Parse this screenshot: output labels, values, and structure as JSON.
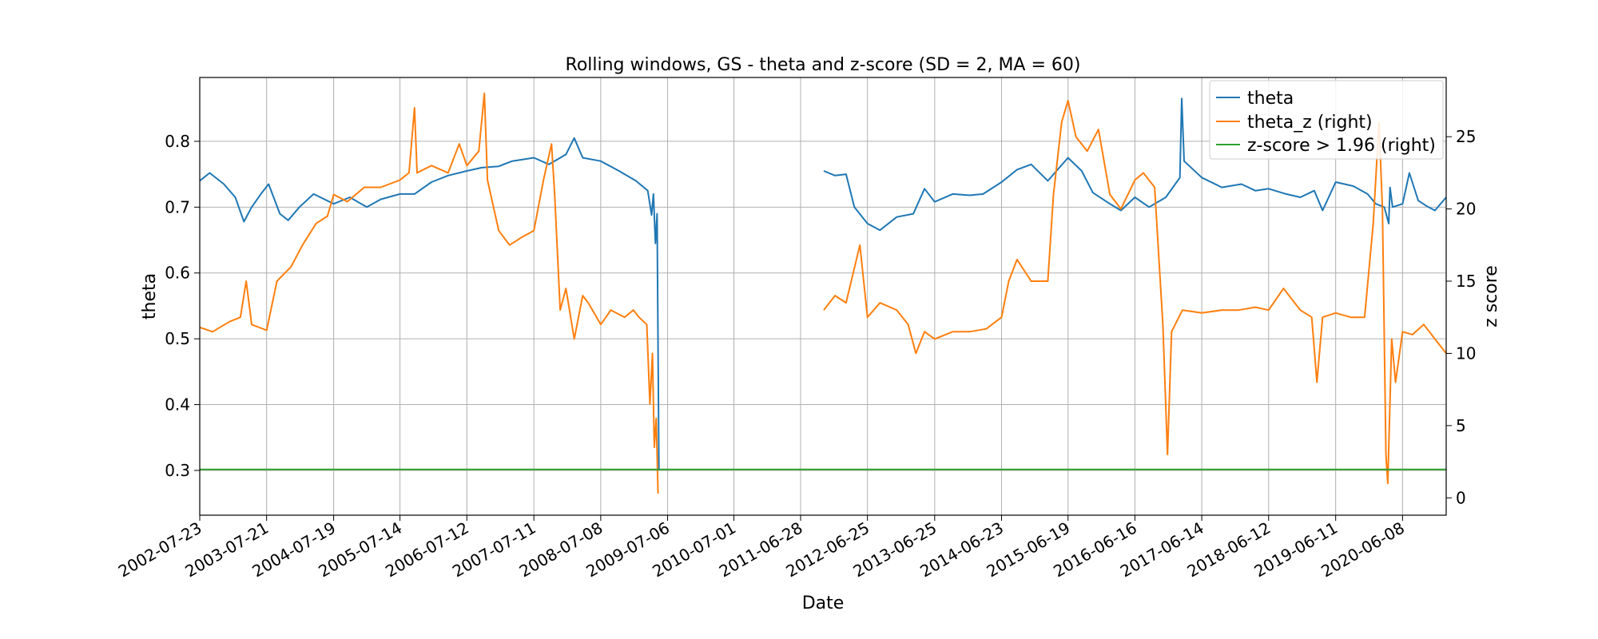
{
  "chart_data": {
    "type": "line",
    "title": "Rolling windows, GS - theta and z-score (SD = 2, MA = 60)",
    "xlabel": "Date",
    "ylabel_left": "theta",
    "ylabel_right": "z score",
    "x_range": [
      "2002-07-23",
      "2021-01-31"
    ],
    "x_ticks": [
      "2002-07-23",
      "2003-07-21",
      "2004-07-19",
      "2005-07-14",
      "2006-07-12",
      "2007-07-11",
      "2008-07-08",
      "2009-07-06",
      "2010-07-01",
      "2011-06-28",
      "2012-06-25",
      "2013-06-25",
      "2014-06-23",
      "2015-06-19",
      "2016-06-16",
      "2017-06-14",
      "2018-06-12",
      "2019-06-11",
      "2020-06-08"
    ],
    "ylim_left": [
      0.232,
      0.897
    ],
    "ylim_right": [
      -1.2,
      29.1
    ],
    "y_ticks_left": [
      0.3,
      0.4,
      0.5,
      0.6,
      0.7,
      0.8
    ],
    "y_ticks_right": [
      0,
      5,
      10,
      15,
      20,
      25
    ],
    "grid": true,
    "legend_position": "top-right",
    "legend": [
      "theta",
      "theta_z (right)",
      "z-score > 1.96 (right)"
    ],
    "series": [
      {
        "name": "theta",
        "axis": "left",
        "color": "#1f77b4",
        "segments": [
          [
            [
              "2002-07-23",
              0.74
            ],
            [
              "2002-09-15",
              0.752
            ],
            [
              "2002-12-01",
              0.735
            ],
            [
              "2003-02-01",
              0.715
            ],
            [
              "2003-03-20",
              0.678
            ],
            [
              "2003-05-01",
              0.7
            ],
            [
              "2003-06-20",
              0.72
            ],
            [
              "2003-08-01",
              0.735
            ],
            [
              "2003-10-01",
              0.69
            ],
            [
              "2003-11-15",
              0.68
            ],
            [
              "2004-01-15",
              0.7
            ],
            [
              "2004-04-01",
              0.72
            ],
            [
              "2004-07-19",
              0.705
            ],
            [
              "2004-10-15",
              0.715
            ],
            [
              "2005-01-15",
              0.7
            ],
            [
              "2005-04-01",
              0.712
            ],
            [
              "2005-07-14",
              0.72
            ],
            [
              "2005-10-01",
              0.72
            ],
            [
              "2006-01-01",
              0.738
            ],
            [
              "2006-04-01",
              0.748
            ],
            [
              "2006-07-12",
              0.755
            ],
            [
              "2006-10-01",
              0.76
            ],
            [
              "2007-01-01",
              0.762
            ],
            [
              "2007-03-15",
              0.77
            ],
            [
              "2007-07-11",
              0.775
            ],
            [
              "2007-10-01",
              0.765
            ],
            [
              "2008-01-01",
              0.78
            ],
            [
              "2008-02-15",
              0.805
            ],
            [
              "2008-04-01",
              0.775
            ],
            [
              "2008-07-08",
              0.77
            ],
            [
              "2008-10-15",
              0.755
            ],
            [
              "2009-01-15",
              0.74
            ],
            [
              "2009-03-20",
              0.725
            ],
            [
              "2009-04-10",
              0.688
            ],
            [
              "2009-04-20",
              0.72
            ],
            [
              "2009-05-01",
              0.645
            ],
            [
              "2009-05-10",
              0.69
            ],
            [
              "2009-05-20",
              0.3
            ]
          ],
          [
            [
              "2011-11-01",
              0.755
            ],
            [
              "2012-01-01",
              0.748
            ],
            [
              "2012-03-01",
              0.75
            ],
            [
              "2012-04-15",
              0.7
            ],
            [
              "2012-06-25",
              0.675
            ],
            [
              "2012-09-01",
              0.665
            ],
            [
              "2012-12-01",
              0.685
            ],
            [
              "2013-03-01",
              0.69
            ],
            [
              "2013-05-01",
              0.728
            ],
            [
              "2013-06-25",
              0.708
            ],
            [
              "2013-10-01",
              0.72
            ],
            [
              "2014-01-01",
              0.718
            ],
            [
              "2014-03-15",
              0.72
            ],
            [
              "2014-06-23",
              0.738
            ],
            [
              "2014-09-15",
              0.757
            ],
            [
              "2014-12-01",
              0.765
            ],
            [
              "2015-03-01",
              0.74
            ],
            [
              "2015-06-19",
              0.775
            ],
            [
              "2015-09-01",
              0.755
            ],
            [
              "2015-11-01",
              0.722
            ],
            [
              "2016-02-01",
              0.705
            ],
            [
              "2016-04-01",
              0.695
            ],
            [
              "2016-06-16",
              0.715
            ],
            [
              "2016-09-01",
              0.7
            ],
            [
              "2016-12-01",
              0.715
            ],
            [
              "2017-02-15",
              0.745
            ],
            [
              "2017-02-25",
              0.865
            ],
            [
              "2017-03-10",
              0.77
            ],
            [
              "2017-06-14",
              0.745
            ],
            [
              "2017-10-01",
              0.73
            ],
            [
              "2018-01-15",
              0.735
            ],
            [
              "2018-04-01",
              0.725
            ],
            [
              "2018-06-12",
              0.728
            ],
            [
              "2018-09-15",
              0.72
            ],
            [
              "2018-12-01",
              0.715
            ],
            [
              "2019-02-15",
              0.725
            ],
            [
              "2019-04-01",
              0.695
            ],
            [
              "2019-06-11",
              0.738
            ],
            [
              "2019-09-15",
              0.732
            ],
            [
              "2019-12-01",
              0.72
            ],
            [
              "2020-01-15",
              0.705
            ],
            [
              "2020-03-01",
              0.7
            ],
            [
              "2020-03-25",
              0.675
            ],
            [
              "2020-04-01",
              0.73
            ],
            [
              "2020-04-15",
              0.7
            ],
            [
              "2020-06-08",
              0.705
            ],
            [
              "2020-07-15",
              0.752
            ],
            [
              "2020-09-01",
              0.71
            ],
            [
              "2020-10-15",
              0.702
            ],
            [
              "2020-12-01",
              0.695
            ],
            [
              "2021-01-31",
              0.715
            ]
          ]
        ]
      },
      {
        "name": "theta_z (right)",
        "axis": "right",
        "color": "#ff7f0e",
        "segments": [
          [
            [
              "2002-07-23",
              11.8
            ],
            [
              "2002-10-01",
              11.5
            ],
            [
              "2003-01-01",
              12.2
            ],
            [
              "2003-03-01",
              12.5
            ],
            [
              "2003-04-01",
              15.0
            ],
            [
              "2003-05-01",
              12.0
            ],
            [
              "2003-07-21",
              11.6
            ],
            [
              "2003-09-15",
              15.0
            ],
            [
              "2003-12-01",
              16.0
            ],
            [
              "2004-02-01",
              17.5
            ],
            [
              "2004-04-15",
              19.0
            ],
            [
              "2004-06-15",
              19.5
            ],
            [
              "2004-07-19",
              21.0
            ],
            [
              "2004-10-01",
              20.5
            ],
            [
              "2005-01-01",
              21.5
            ],
            [
              "2005-04-01",
              21.5
            ],
            [
              "2005-07-14",
              22.0
            ],
            [
              "2005-09-01",
              22.5
            ],
            [
              "2005-10-01",
              27.0
            ],
            [
              "2005-10-15",
              22.5
            ],
            [
              "2006-01-01",
              23.0
            ],
            [
              "2006-04-01",
              22.5
            ],
            [
              "2006-06-01",
              24.5
            ],
            [
              "2006-07-12",
              23.0
            ],
            [
              "2006-09-15",
              24.0
            ],
            [
              "2006-10-15",
              28.0
            ],
            [
              "2006-11-01",
              22.0
            ],
            [
              "2007-01-01",
              18.5
            ],
            [
              "2007-03-01",
              17.5
            ],
            [
              "2007-05-01",
              18.0
            ],
            [
              "2007-07-11",
              18.5
            ],
            [
              "2007-09-01",
              22.0
            ],
            [
              "2007-10-15",
              24.5
            ],
            [
              "2007-11-01",
              21.0
            ],
            [
              "2007-12-01",
              13.0
            ],
            [
              "2008-01-01",
              14.5
            ],
            [
              "2008-02-15",
              11.0
            ],
            [
              "2008-04-01",
              14.0
            ],
            [
              "2008-05-01",
              13.5
            ],
            [
              "2008-07-08",
              12.0
            ],
            [
              "2008-09-01",
              13.0
            ],
            [
              "2008-11-15",
              12.5
            ],
            [
              "2009-01-01",
              13.0
            ],
            [
              "2009-02-01",
              12.5
            ],
            [
              "2009-03-15",
              12.0
            ],
            [
              "2009-04-01",
              6.5
            ],
            [
              "2009-04-15",
              10.0
            ],
            [
              "2009-04-25",
              3.5
            ],
            [
              "2009-05-05",
              5.5
            ],
            [
              "2009-05-15",
              0.3
            ]
          ],
          [
            [
              "2011-11-01",
              13.0
            ],
            [
              "2012-01-01",
              14.0
            ],
            [
              "2012-03-01",
              13.5
            ],
            [
              "2012-05-15",
              17.5
            ],
            [
              "2012-06-25",
              12.5
            ],
            [
              "2012-09-01",
              13.5
            ],
            [
              "2012-12-01",
              13.0
            ],
            [
              "2013-02-01",
              12.0
            ],
            [
              "2013-03-15",
              10.0
            ],
            [
              "2013-05-01",
              11.5
            ],
            [
              "2013-06-25",
              11.0
            ],
            [
              "2013-10-01",
              11.5
            ],
            [
              "2014-01-01",
              11.5
            ],
            [
              "2014-04-01",
              11.7
            ],
            [
              "2014-06-23",
              12.5
            ],
            [
              "2014-08-01",
              15.0
            ],
            [
              "2014-09-15",
              16.5
            ],
            [
              "2014-12-01",
              15.0
            ],
            [
              "2015-03-01",
              15.0
            ],
            [
              "2015-04-01",
              21.0
            ],
            [
              "2015-05-15",
              26.0
            ],
            [
              "2015-06-19",
              27.5
            ],
            [
              "2015-08-01",
              25.0
            ],
            [
              "2015-10-01",
              24.0
            ],
            [
              "2015-12-01",
              25.5
            ],
            [
              "2016-02-01",
              21.0
            ],
            [
              "2016-04-01",
              20.0
            ],
            [
              "2016-06-16",
              22.0
            ],
            [
              "2016-08-01",
              22.5
            ],
            [
              "2016-10-01",
              21.5
            ],
            [
              "2016-11-15",
              12.0
            ],
            [
              "2016-12-10",
              3.0
            ],
            [
              "2017-01-01",
              11.5
            ],
            [
              "2017-03-01",
              13.0
            ],
            [
              "2017-06-14",
              12.8
            ],
            [
              "2017-10-01",
              13.0
            ],
            [
              "2018-01-01",
              13.0
            ],
            [
              "2018-04-01",
              13.2
            ],
            [
              "2018-06-12",
              13.0
            ],
            [
              "2018-09-01",
              14.5
            ],
            [
              "2018-12-01",
              13.0
            ],
            [
              "2019-02-01",
              12.5
            ],
            [
              "2019-03-01",
              8.0
            ],
            [
              "2019-04-01",
              12.5
            ],
            [
              "2019-06-11",
              12.8
            ],
            [
              "2019-09-01",
              12.5
            ],
            [
              "2019-11-15",
              12.5
            ],
            [
              "2020-01-01",
              19.0
            ],
            [
              "2020-02-01",
              26.0
            ],
            [
              "2020-02-20",
              20.0
            ],
            [
              "2020-03-10",
              3.0
            ],
            [
              "2020-03-20",
              1.0
            ],
            [
              "2020-04-10",
              11.0
            ],
            [
              "2020-05-01",
              8.0
            ],
            [
              "2020-06-08",
              11.5
            ],
            [
              "2020-08-01",
              11.3
            ],
            [
              "2020-10-01",
              12.0
            ],
            [
              "2020-12-01",
              11.0
            ],
            [
              "2021-01-31",
              10.0
            ]
          ]
        ]
      },
      {
        "name": "z-score > 1.96 (right)",
        "axis": "right",
        "color": "#2ca02c",
        "segments": [
          [
            [
              "2002-07-23",
              1.96
            ],
            [
              "2021-01-31",
              1.96
            ]
          ]
        ]
      }
    ]
  }
}
